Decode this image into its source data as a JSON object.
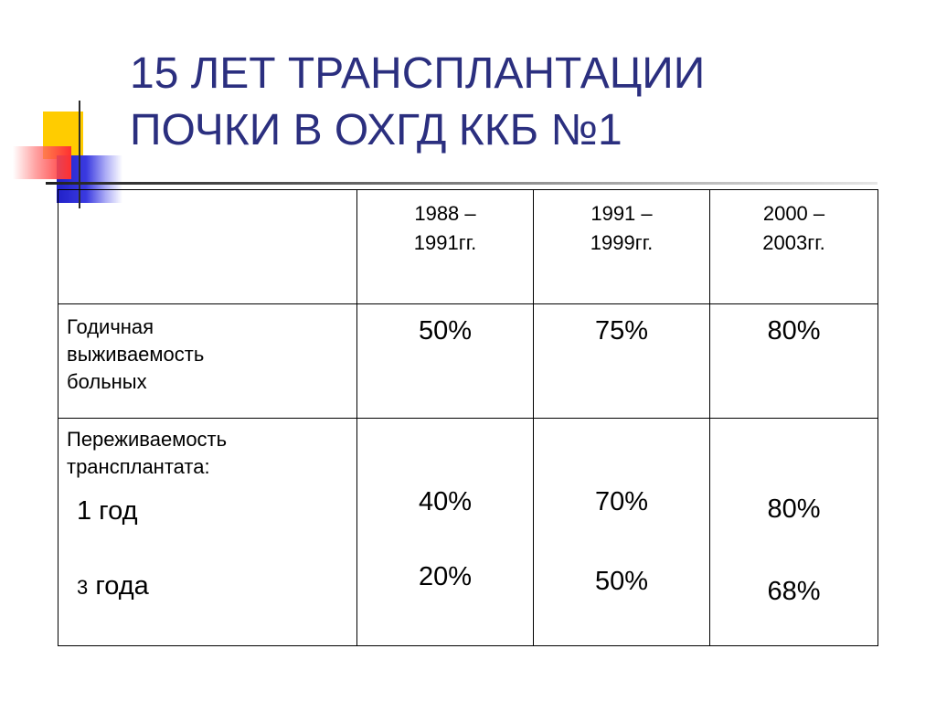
{
  "title": {
    "line1": "15 ЛЕТ ТРАНСПЛАНТАЦИИ",
    "line2": "ПОЧКИ В ОХГД ККБ №1"
  },
  "colors": {
    "title": "#2b2f7f",
    "ornament_yellow": "#ffcc00",
    "ornament_blue": "#2020c8",
    "ornament_red": "#ff3030"
  },
  "table": {
    "periods": [
      {
        "line1": "1988 –",
        "line2": "1991гг."
      },
      {
        "line1": "1991 –",
        "line2": "1999гг."
      },
      {
        "line1": "2000 –",
        "line2": "2003гг."
      }
    ],
    "patient_survival": {
      "label": [
        "Годичная",
        "выживаемость",
        "больных"
      ],
      "values": [
        "50%",
        "75%",
        "80%"
      ]
    },
    "graft_survival": {
      "label": [
        "Переживаемость",
        "трансплантата:"
      ],
      "sub1": "1 год",
      "sub3_num": "3",
      "sub3_text": "года",
      "year1": [
        "40%",
        "70%",
        "80%"
      ],
      "year3": [
        "20%",
        "50%",
        "68%"
      ]
    }
  }
}
